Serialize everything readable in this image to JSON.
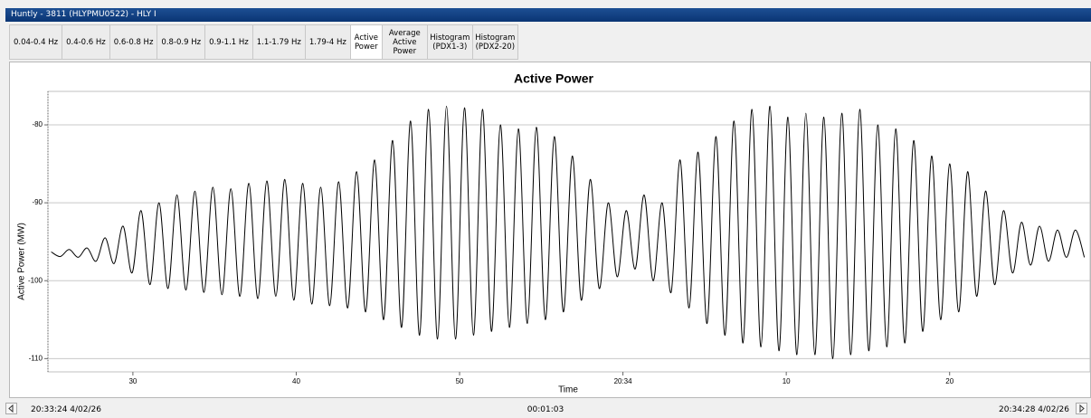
{
  "window": {
    "title": "Huntly - 3811 (HLYPMU0522) - HLY I"
  },
  "tabs": [
    "0.04-0.4 Hz",
    "0.4-0.6 Hz",
    "0.6-0.8 Hz",
    "0.8-0.9 Hz",
    "0.9-1.1 Hz",
    "1.1-1.79 Hz",
    "1.79-4 Hz",
    "Active Power",
    "Average Active Power",
    "Histogram (PDX1-3)",
    "Histogram (PDX2-20)"
  ],
  "selected_tab": 7,
  "chart_data": {
    "type": "line",
    "title": "Active Power",
    "x_label": "Time",
    "y_label": "Active Power (MW)",
    "color": "#000000",
    "grid": true,
    "x": [
      25,
      25.55,
      26.1,
      26.65,
      27.2,
      27.75,
      28.3,
      28.85,
      29.4,
      29.95,
      30.5,
      31.05,
      31.6,
      32.15,
      32.7,
      33.25,
      33.8,
      34.35,
      34.9,
      35.45,
      36,
      36.55,
      37.1,
      37.65,
      38.2,
      38.75,
      39.3,
      39.85,
      40.4,
      40.95,
      41.5,
      42.05,
      42.6,
      43.15,
      43.7,
      44.25,
      44.8,
      45.35,
      45.9,
      46.45,
      47,
      47.55,
      48.1,
      48.65,
      49.2,
      49.75,
      50.3,
      50.85,
      51.4,
      51.95,
      52.5,
      53.05,
      53.6,
      54.15,
      54.7,
      55.25,
      55.8,
      56.35,
      56.9,
      57.45,
      58,
      58.55,
      59.1,
      59.65,
      60.2,
      60.75,
      61.3,
      61.85,
      62.4,
      62.95,
      63.5,
      64.05,
      64.6,
      65.15,
      65.7,
      66.25,
      66.8,
      67.35,
      67.9,
      68.45,
      69,
      69.55,
      70.1,
      70.65,
      71.2,
      71.75,
      72.3,
      72.85,
      73.4,
      73.95,
      74.5,
      75.05,
      75.6,
      76.15,
      76.7,
      77.25,
      77.8,
      78.35,
      78.9,
      79.45,
      80,
      80.55,
      81.1,
      81.65,
      82.2,
      82.75,
      83.3,
      83.85,
      84.4,
      84.95,
      85.5,
      86.05,
      86.6,
      87.15,
      87.7,
      88.25
    ],
    "values": [
      -96.3,
      -96.9,
      -96.0,
      -97.0,
      -95.8,
      -97.5,
      -94.5,
      -97.8,
      -93.0,
      -99.0,
      -91.0,
      -100.5,
      -90.0,
      -101.0,
      -89.0,
      -101.2,
      -88.5,
      -101.5,
      -88.0,
      -101.8,
      -88.2,
      -102.0,
      -87.5,
      -102.3,
      -87.2,
      -102.0,
      -87.0,
      -102.5,
      -87.5,
      -103.0,
      -88.0,
      -103.2,
      -87.3,
      -103.5,
      -86.0,
      -104.0,
      -84.5,
      -105.0,
      -82.0,
      -106.0,
      -79.5,
      -107.0,
      -78.0,
      -107.5,
      -77.6,
      -107.5,
      -77.8,
      -107.0,
      -78.0,
      -106.5,
      -80.0,
      -106.0,
      -80.5,
      -105.5,
      -80.3,
      -105.0,
      -81.5,
      -104.0,
      -84.0,
      -102.5,
      -87.0,
      -101.0,
      -90.0,
      -99.5,
      -91.0,
      -98.5,
      -89.0,
      -100.0,
      -90.0,
      -101.5,
      -84.5,
      -103.5,
      -83.5,
      -105.5,
      -81.5,
      -107.0,
      -79.5,
      -108.0,
      -78.0,
      -108.5,
      -77.6,
      -109.0,
      -79.0,
      -109.5,
      -78.5,
      -109.5,
      -79.0,
      -110.0,
      -78.5,
      -109.5,
      -78.0,
      -109.0,
      -80.0,
      -108.5,
      -80.5,
      -108.0,
      -82.0,
      -106.5,
      -84.0,
      -105.0,
      -85.0,
      -104.0,
      -86.0,
      -102.0,
      -88.5,
      -100.5,
      -91.0,
      -99.0,
      -92.5,
      -98.0,
      -93.0,
      -97.5,
      -93.5,
      -97.0,
      -93.5,
      -97.0
    ],
    "xlim": [
      24.8,
      88.6
    ],
    "xticks": [
      30,
      40,
      50,
      {
        "value": 60,
        "label": "20:34"
      },
      {
        "value": 70,
        "label": "10"
      },
      {
        "value": 80,
        "label": "20"
      }
    ],
    "ylim": [
      -111.7,
      -75.7
    ],
    "yticks": [
      -80,
      -90,
      -100,
      -110
    ]
  },
  "footer": {
    "start": "20:33:24 4/02/26",
    "duration": "00:01:03",
    "end": "20:34:28 4/02/26"
  }
}
